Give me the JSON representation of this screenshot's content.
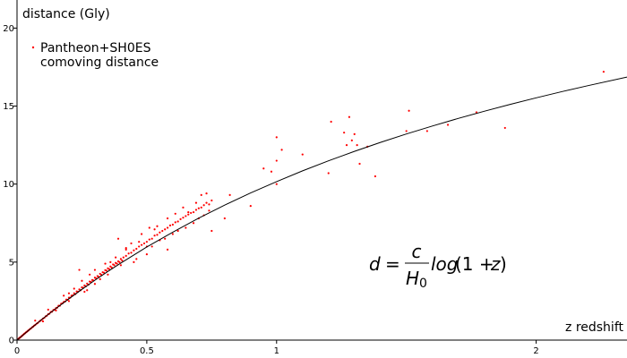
{
  "chart_data": {
    "type": "scatter",
    "xlabel": "z redshift",
    "ylabel": "distance (Gly)",
    "xlim": [
      0,
      2.35
    ],
    "ylim": [
      0,
      21.8
    ],
    "xticks": [
      0,
      0.5,
      1,
      2
    ],
    "xtick_labels": [
      "0",
      "0.5",
      "1",
      "2"
    ],
    "yticks": [
      0,
      5,
      10,
      15,
      20
    ],
    "ytick_labels": [
      "0",
      "5",
      "10",
      "15",
      "20"
    ],
    "grid": false,
    "legend": {
      "placement": "top-left",
      "entries": [
        "Pantheon+SH0ES",
        "comoving distance"
      ]
    },
    "series": [
      {
        "name": "Pantheon+SH0ES",
        "kind": "scatter",
        "color": "#ff0000",
        "points": [
          [
            0.005,
            0.07
          ],
          [
            0.008,
            0.12
          ],
          [
            0.01,
            0.14
          ],
          [
            0.012,
            0.17
          ],
          [
            0.015,
            0.21
          ],
          [
            0.018,
            0.26
          ],
          [
            0.02,
            0.28
          ],
          [
            0.023,
            0.33
          ],
          [
            0.026,
            0.37
          ],
          [
            0.028,
            0.41
          ],
          [
            0.031,
            0.44
          ],
          [
            0.034,
            0.49
          ],
          [
            0.037,
            0.52
          ],
          [
            0.04,
            0.57
          ],
          [
            0.043,
            0.61
          ],
          [
            0.046,
            0.65
          ],
          [
            0.05,
            0.71
          ],
          [
            0.054,
            0.75
          ],
          [
            0.058,
            0.82
          ],
          [
            0.062,
            0.86
          ],
          [
            0.066,
            0.93
          ],
          [
            0.07,
            0.97
          ],
          [
            0.075,
            1.05
          ],
          [
            0.08,
            1.1
          ],
          [
            0.085,
            1.18
          ],
          [
            0.09,
            1.24
          ],
          [
            0.095,
            1.3
          ],
          [
            0.1,
            1.38
          ],
          [
            0.105,
            1.43
          ],
          [
            0.11,
            1.52
          ],
          [
            0.115,
            1.56
          ],
          [
            0.12,
            1.66
          ],
          [
            0.125,
            1.69
          ],
          [
            0.13,
            1.8
          ],
          [
            0.135,
            1.82
          ],
          [
            0.14,
            1.93
          ],
          [
            0.145,
            1.95
          ],
          [
            0.15,
            2.05
          ],
          [
            0.155,
            2.08
          ],
          [
            0.16,
            2.2
          ],
          [
            0.165,
            2.2
          ],
          [
            0.17,
            2.33
          ],
          [
            0.175,
            2.35
          ],
          [
            0.18,
            2.45
          ],
          [
            0.185,
            2.47
          ],
          [
            0.19,
            2.6
          ],
          [
            0.195,
            2.58
          ],
          [
            0.2,
            2.72
          ],
          [
            0.205,
            2.72
          ],
          [
            0.21,
            2.85
          ],
          [
            0.215,
            2.86
          ],
          [
            0.22,
            3.0
          ],
          [
            0.225,
            2.95
          ],
          [
            0.23,
            3.12
          ],
          [
            0.235,
            3.1
          ],
          [
            0.24,
            3.25
          ],
          [
            0.245,
            3.2
          ],
          [
            0.25,
            3.38
          ],
          [
            0.255,
            3.35
          ],
          [
            0.26,
            3.5
          ],
          [
            0.265,
            3.45
          ],
          [
            0.27,
            3.62
          ],
          [
            0.275,
            3.55
          ],
          [
            0.28,
            3.75
          ],
          [
            0.285,
            3.72
          ],
          [
            0.29,
            3.85
          ],
          [
            0.295,
            3.82
          ],
          [
            0.3,
            4.0
          ],
          [
            0.305,
            3.95
          ],
          [
            0.31,
            4.1
          ],
          [
            0.315,
            4.05
          ],
          [
            0.32,
            4.25
          ],
          [
            0.325,
            4.18
          ],
          [
            0.33,
            4.35
          ],
          [
            0.335,
            4.32
          ],
          [
            0.34,
            4.48
          ],
          [
            0.345,
            4.45
          ],
          [
            0.35,
            4.6
          ],
          [
            0.355,
            4.55
          ],
          [
            0.36,
            4.72
          ],
          [
            0.365,
            4.65
          ],
          [
            0.37,
            4.85
          ],
          [
            0.375,
            4.8
          ],
          [
            0.38,
            4.95
          ],
          [
            0.385,
            4.9
          ],
          [
            0.39,
            5.05
          ],
          [
            0.395,
            5.0
          ],
          [
            0.4,
            5.2
          ],
          [
            0.405,
            5.1
          ],
          [
            0.41,
            5.3
          ],
          [
            0.42,
            5.4
          ],
          [
            0.43,
            5.55
          ],
          [
            0.44,
            5.6
          ],
          [
            0.45,
            5.75
          ],
          [
            0.46,
            5.85
          ],
          [
            0.47,
            6.0
          ],
          [
            0.48,
            6.1
          ],
          [
            0.49,
            6.2
          ],
          [
            0.5,
            6.3
          ],
          [
            0.51,
            6.45
          ],
          [
            0.52,
            6.5
          ],
          [
            0.53,
            6.7
          ],
          [
            0.54,
            6.75
          ],
          [
            0.55,
            6.9
          ],
          [
            0.56,
            7.0
          ],
          [
            0.57,
            7.1
          ],
          [
            0.58,
            7.2
          ],
          [
            0.59,
            7.35
          ],
          [
            0.6,
            7.4
          ],
          [
            0.61,
            7.55
          ],
          [
            0.62,
            7.6
          ],
          [
            0.63,
            7.75
          ],
          [
            0.64,
            7.85
          ],
          [
            0.65,
            7.95
          ],
          [
            0.66,
            8.05
          ],
          [
            0.67,
            8.15
          ],
          [
            0.68,
            8.2
          ],
          [
            0.69,
            8.35
          ],
          [
            0.7,
            8.45
          ],
          [
            0.71,
            8.5
          ],
          [
            0.72,
            8.65
          ],
          [
            0.73,
            8.8
          ],
          [
            0.74,
            8.7
          ],
          [
            0.75,
            8.95
          ],
          [
            0.07,
            1.25
          ],
          [
            0.12,
            1.95
          ],
          [
            0.15,
            1.9
          ],
          [
            0.18,
            2.85
          ],
          [
            0.2,
            3.0
          ],
          [
            0.22,
            3.3
          ],
          [
            0.24,
            4.5
          ],
          [
            0.25,
            3.8
          ],
          [
            0.26,
            3.1
          ],
          [
            0.28,
            4.2
          ],
          [
            0.3,
            4.5
          ],
          [
            0.32,
            3.9
          ],
          [
            0.34,
            4.9
          ],
          [
            0.36,
            5.0
          ],
          [
            0.38,
            5.3
          ],
          [
            0.39,
            6.5
          ],
          [
            0.4,
            4.8
          ],
          [
            0.42,
            5.9
          ],
          [
            0.44,
            6.2
          ],
          [
            0.46,
            5.2
          ],
          [
            0.48,
            6.8
          ],
          [
            0.5,
            6.0
          ],
          [
            0.51,
            7.2
          ],
          [
            0.52,
            6.0
          ],
          [
            0.54,
            7.3
          ],
          [
            0.55,
            6.4
          ],
          [
            0.57,
            6.5
          ],
          [
            0.58,
            7.8
          ],
          [
            0.6,
            6.8
          ],
          [
            0.61,
            8.1
          ],
          [
            0.62,
            7.0
          ],
          [
            0.64,
            8.5
          ],
          [
            0.65,
            7.2
          ],
          [
            0.66,
            8.2
          ],
          [
            0.68,
            7.5
          ],
          [
            0.69,
            8.8
          ],
          [
            0.7,
            7.8
          ],
          [
            0.71,
            9.3
          ],
          [
            0.72,
            8.0
          ],
          [
            0.73,
            9.4
          ],
          [
            0.74,
            8.3
          ],
          [
            0.75,
            7.0
          ],
          [
            0.58,
            5.8
          ],
          [
            0.5,
            5.5
          ],
          [
            0.45,
            5.0
          ],
          [
            0.35,
            4.2
          ],
          [
            0.3,
            3.6
          ],
          [
            0.27,
            3.2
          ],
          [
            0.2,
            2.5
          ],
          [
            0.1,
            1.2
          ],
          [
            0.53,
            7.1
          ],
          [
            0.42,
            5.8
          ],
          [
            0.47,
            6.3
          ],
          [
            0.8,
            7.8
          ],
          [
            0.82,
            9.3
          ],
          [
            0.9,
            8.6
          ],
          [
            0.95,
            11.0
          ],
          [
            0.98,
            10.8
          ],
          [
            1.0,
            10.0
          ],
          [
            1.0,
            11.5
          ],
          [
            1.0,
            13.0
          ],
          [
            1.02,
            12.2
          ],
          [
            1.1,
            11.9
          ],
          [
            1.2,
            10.7
          ],
          [
            1.21,
            14.0
          ],
          [
            1.26,
            13.3
          ],
          [
            1.27,
            12.5
          ],
          [
            1.28,
            14.3
          ],
          [
            1.29,
            12.8
          ],
          [
            1.3,
            13.2
          ],
          [
            1.31,
            12.5
          ],
          [
            1.32,
            11.3
          ],
          [
            1.35,
            12.4
          ],
          [
            1.38,
            10.5
          ],
          [
            1.5,
            13.4
          ],
          [
            1.51,
            14.7
          ],
          [
            1.58,
            13.4
          ],
          [
            1.66,
            13.8
          ],
          [
            1.77,
            14.6
          ],
          [
            1.88,
            13.6
          ],
          [
            2.26,
            17.2
          ]
        ]
      },
      {
        "name": "comoving distance",
        "kind": "line",
        "color": "#000000",
        "points": [
          [
            0,
            0
          ],
          [
            0.05,
            0.7
          ],
          [
            0.1,
            1.38
          ],
          [
            0.15,
            2.03
          ],
          [
            0.2,
            2.65
          ],
          [
            0.25,
            3.25
          ],
          [
            0.3,
            3.84
          ],
          [
            0.35,
            4.4
          ],
          [
            0.4,
            4.94
          ],
          [
            0.5,
            5.97
          ],
          [
            0.6,
            6.92
          ],
          [
            0.7,
            7.82
          ],
          [
            0.8,
            8.65
          ],
          [
            0.9,
            9.43
          ],
          [
            1.0,
            10.16
          ],
          [
            1.1,
            10.85
          ],
          [
            1.2,
            11.49
          ],
          [
            1.3,
            12.1
          ],
          [
            1.4,
            12.67
          ],
          [
            1.5,
            13.21
          ],
          [
            1.6,
            13.72
          ],
          [
            1.7,
            14.21
          ],
          [
            1.8,
            14.67
          ],
          [
            1.9,
            15.11
          ],
          [
            2.0,
            15.53
          ],
          [
            2.1,
            15.93
          ],
          [
            2.2,
            16.31
          ],
          [
            2.35,
            16.86
          ]
        ]
      }
    ],
    "annotations": [
      {
        "kind": "formula",
        "lhs": "d",
        "eq": "=",
        "numerator": "c",
        "denominator_symbol": "H",
        "denominator_subscript": "0",
        "function": "log",
        "argument_open": "(1 + ",
        "argument_var": "z",
        "argument_close": ")"
      }
    ]
  }
}
